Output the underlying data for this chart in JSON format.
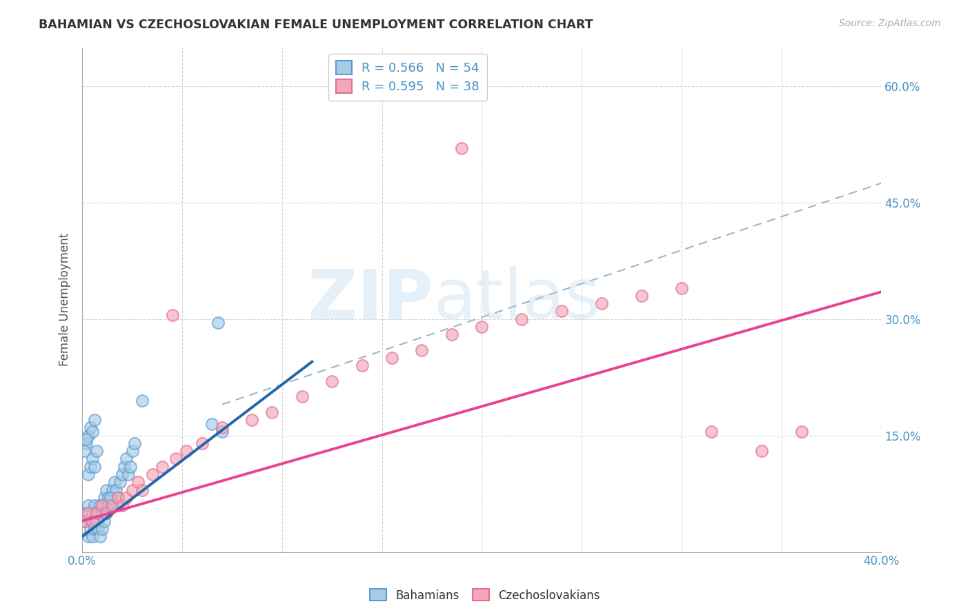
{
  "title": "BAHAMIAN VS CZECHOSLOVAKIAN FEMALE UNEMPLOYMENT CORRELATION CHART",
  "source": "Source: ZipAtlas.com",
  "ylabel": "Female Unemployment",
  "color_blue_fill": "#a8cce4",
  "color_pink_fill": "#f4a7b9",
  "color_blue_edge": "#5b9bd5",
  "color_pink_edge": "#e07090",
  "color_blue_line": "#2166ac",
  "color_pink_line": "#e84393",
  "color_text": "#4393c3",
  "R_blue": 0.566,
  "N_blue": 54,
  "R_pink": 0.595,
  "N_pink": 38,
  "xlim": [
    0,
    0.4
  ],
  "ylim": [
    0,
    0.65
  ],
  "yticks": [
    0.0,
    0.15,
    0.3,
    0.45,
    0.6
  ],
  "yticklabels_right": [
    "",
    "15.0%",
    "30.0%",
    "45.0%",
    "60.0%"
  ],
  "xtick_positions": [
    0.0,
    0.05,
    0.1,
    0.15,
    0.2,
    0.25,
    0.3,
    0.35,
    0.4
  ],
  "xtick_labels": [
    "0.0%",
    "",
    "",
    "",
    "",
    "",
    "",
    "",
    "40.0%"
  ],
  "bah_line_x": [
    0.0,
    0.115
  ],
  "bah_line_y": [
    0.02,
    0.245
  ],
  "czecho_line_x": [
    0.0,
    0.4
  ],
  "czecho_line_y": [
    0.04,
    0.335
  ],
  "dash_line_x": [
    0.07,
    0.4
  ],
  "dash_line_y": [
    0.19,
    0.475
  ],
  "bah_x": [
    0.001,
    0.002,
    0.003,
    0.004,
    0.005,
    0.006,
    0.007,
    0.008,
    0.009,
    0.01,
    0.011,
    0.012,
    0.013,
    0.014,
    0.015,
    0.016,
    0.017,
    0.018,
    0.019,
    0.02,
    0.021,
    0.022,
    0.023,
    0.024,
    0.025,
    0.026,
    0.003,
    0.004,
    0.005,
    0.006,
    0.007,
    0.008,
    0.009,
    0.01,
    0.011,
    0.012,
    0.013,
    0.014,
    0.003,
    0.004,
    0.005,
    0.006,
    0.007,
    0.002,
    0.003,
    0.004,
    0.005,
    0.006,
    0.001,
    0.002,
    0.03,
    0.065,
    0.068,
    0.07
  ],
  "bah_y": [
    0.04,
    0.05,
    0.06,
    0.04,
    0.05,
    0.06,
    0.05,
    0.04,
    0.06,
    0.05,
    0.07,
    0.08,
    0.07,
    0.06,
    0.08,
    0.09,
    0.08,
    0.07,
    0.09,
    0.1,
    0.11,
    0.12,
    0.1,
    0.11,
    0.13,
    0.14,
    0.02,
    0.03,
    0.02,
    0.03,
    0.04,
    0.03,
    0.02,
    0.03,
    0.04,
    0.05,
    0.06,
    0.07,
    0.1,
    0.11,
    0.12,
    0.11,
    0.13,
    0.14,
    0.15,
    0.16,
    0.155,
    0.17,
    0.13,
    0.145,
    0.195,
    0.165,
    0.295,
    0.155
  ],
  "czecho_x": [
    0.001,
    0.003,
    0.005,
    0.007,
    0.01,
    0.012,
    0.015,
    0.018,
    0.02,
    0.022,
    0.025,
    0.028,
    0.03,
    0.035,
    0.04,
    0.047,
    0.052,
    0.06,
    0.07,
    0.085,
    0.095,
    0.11,
    0.125,
    0.14,
    0.155,
    0.17,
    0.185,
    0.2,
    0.22,
    0.24,
    0.26,
    0.28,
    0.3,
    0.315,
    0.34,
    0.36,
    0.19,
    0.045
  ],
  "czecho_y": [
    0.04,
    0.05,
    0.04,
    0.05,
    0.06,
    0.05,
    0.06,
    0.07,
    0.06,
    0.07,
    0.08,
    0.09,
    0.08,
    0.1,
    0.11,
    0.12,
    0.13,
    0.14,
    0.16,
    0.17,
    0.18,
    0.2,
    0.22,
    0.24,
    0.25,
    0.26,
    0.28,
    0.29,
    0.3,
    0.31,
    0.32,
    0.33,
    0.34,
    0.155,
    0.13,
    0.155,
    0.52,
    0.305
  ]
}
